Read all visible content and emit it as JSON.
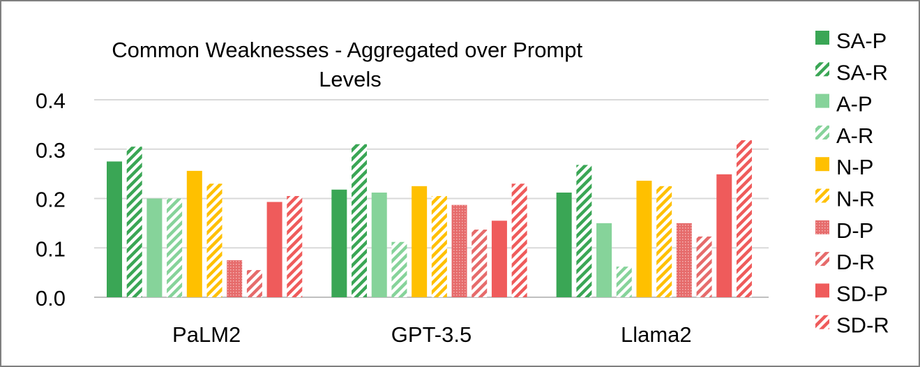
{
  "chart_data": {
    "type": "bar",
    "title": "Common Weaknesses - Aggregated over Prompt Levels",
    "xlabel": "",
    "ylabel": "",
    "ylim": [
      0,
      0.4
    ],
    "yticks": [
      "0.0",
      "0.1",
      "0.2",
      "0.3",
      "0.4"
    ],
    "grid": true,
    "legend_position": "right",
    "categories": [
      "PaLM2",
      "GPT-3.5",
      "Llama2"
    ],
    "series": [
      {
        "name": "SA-P",
        "color": "#3aa655",
        "pattern": "solid",
        "values": [
          0.275,
          0.218,
          0.212
        ]
      },
      {
        "name": "SA-R",
        "color": "#3aa655",
        "pattern": "hatch",
        "values": [
          0.305,
          0.31,
          0.268
        ]
      },
      {
        "name": "A-P",
        "color": "#86d39a",
        "pattern": "solid",
        "values": [
          0.2,
          0.212,
          0.15
        ]
      },
      {
        "name": "A-R",
        "color": "#86d39a",
        "pattern": "hatch",
        "values": [
          0.2,
          0.112,
          0.062
        ]
      },
      {
        "name": "N-P",
        "color": "#ffc000",
        "pattern": "solid",
        "values": [
          0.256,
          0.225,
          0.236
        ]
      },
      {
        "name": "N-R",
        "color": "#ffc000",
        "pattern": "hatch",
        "values": [
          0.23,
          0.205,
          0.225
        ]
      },
      {
        "name": "D-P",
        "color": "#e66b6b",
        "pattern": "dots",
        "values": [
          0.075,
          0.187,
          0.15
        ]
      },
      {
        "name": "D-R",
        "color": "#e66b6b",
        "pattern": "hatch",
        "values": [
          0.055,
          0.137,
          0.123
        ]
      },
      {
        "name": "SD-P",
        "color": "#ef5b5b",
        "pattern": "solid",
        "values": [
          0.193,
          0.155,
          0.249
        ]
      },
      {
        "name": "SD-R",
        "color": "#ef5b5b",
        "pattern": "hatch",
        "values": [
          0.205,
          0.23,
          0.318
        ]
      }
    ]
  }
}
